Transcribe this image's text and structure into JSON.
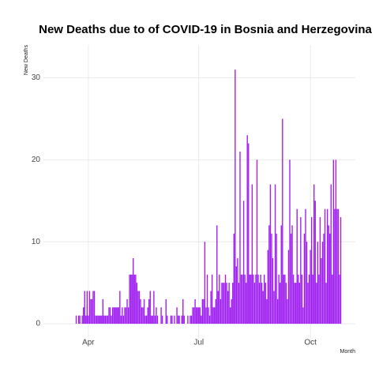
{
  "chart_data": {
    "type": "bar",
    "title": "New Deaths due to of COVID-19 in Bosnia and Herzegovina",
    "x_label": "Month",
    "y_label": "New Deaths",
    "color": "#a020f0",
    "grid": true,
    "xlim": [
      55,
      312
    ],
    "xticks": [
      {
        "value": 92,
        "label": "Apr"
      },
      {
        "value": 183,
        "label": "Jul"
      },
      {
        "value": 275,
        "label": "Oct"
      }
    ],
    "ylim": [
      -2.5,
      34
    ],
    "yticks": [
      0,
      10,
      20,
      30
    ],
    "x": [
      82,
      83,
      84,
      85,
      86,
      87,
      88,
      89,
      90,
      91,
      92,
      93,
      94,
      95,
      96,
      97,
      98,
      99,
      100,
      101,
      102,
      103,
      104,
      105,
      106,
      107,
      108,
      109,
      110,
      111,
      112,
      113,
      114,
      115,
      116,
      117,
      118,
      119,
      120,
      121,
      122,
      123,
      124,
      125,
      126,
      127,
      128,
      129,
      130,
      131,
      132,
      133,
      134,
      135,
      136,
      137,
      138,
      139,
      140,
      141,
      142,
      143,
      144,
      145,
      146,
      147,
      148,
      149,
      150,
      151,
      152,
      153,
      154,
      155,
      156,
      157,
      158,
      159,
      160,
      161,
      162,
      163,
      164,
      165,
      166,
      167,
      168,
      169,
      170,
      171,
      172,
      173,
      174,
      175,
      176,
      177,
      178,
      179,
      180,
      181,
      182,
      183,
      184,
      185,
      186,
      187,
      188,
      189,
      190,
      191,
      192,
      193,
      194,
      195,
      196,
      197,
      198,
      199,
      200,
      201,
      202,
      203,
      204,
      205,
      206,
      207,
      208,
      209,
      210,
      211,
      212,
      213,
      214,
      215,
      216,
      217,
      218,
      219,
      220,
      221,
      222,
      223,
      224,
      225,
      226,
      227,
      228,
      229,
      230,
      231,
      232,
      233,
      234,
      235,
      236,
      237,
      238,
      239,
      240,
      241,
      242,
      243,
      244,
      245,
      246,
      247,
      248,
      249,
      250,
      251,
      252,
      253,
      254,
      255,
      256,
      257,
      258,
      259,
      260,
      261,
      262,
      263,
      264,
      265,
      266,
      267,
      268,
      269,
      270,
      271,
      272,
      273,
      274,
      275,
      276,
      277,
      278,
      279,
      280,
      281,
      282,
      283,
      284,
      285,
      286,
      287,
      288,
      289,
      290,
      291,
      292,
      293,
      294,
      295,
      296,
      297,
      298,
      299,
      300
    ],
    "values": [
      1,
      0,
      1,
      1,
      0,
      1,
      2,
      4,
      1,
      4,
      1,
      4,
      3,
      3,
      4,
      4,
      1,
      1,
      1,
      1,
      1,
      1,
      3,
      1,
      1,
      1,
      1,
      2,
      2,
      1,
      2,
      2,
      2,
      2,
      2,
      2,
      4,
      1,
      2,
      1,
      2,
      2,
      3,
      2,
      6,
      6,
      6,
      8,
      6,
      6,
      5,
      4,
      4,
      3,
      2,
      2,
      3,
      1,
      1,
      2,
      3,
      4,
      1,
      1,
      4,
      1,
      2,
      1,
      0,
      0,
      2,
      1,
      0,
      0,
      3,
      1,
      0,
      0,
      1,
      1,
      0,
      1,
      0,
      2,
      1,
      1,
      0,
      1,
      3,
      1,
      0,
      0,
      1,
      0,
      1,
      1,
      2,
      2,
      3,
      2,
      2,
      2,
      2,
      1,
      3,
      3,
      10,
      2,
      6,
      2,
      1,
      4,
      6,
      2,
      2,
      3,
      12,
      4,
      6,
      3,
      5,
      5,
      5,
      6,
      5,
      4,
      5,
      2,
      3,
      5,
      11,
      31,
      7,
      8,
      5,
      21,
      6,
      6,
      15,
      6,
      5,
      23,
      22,
      6,
      6,
      17,
      6,
      5,
      6,
      20,
      6,
      5,
      6,
      5,
      4,
      6,
      5,
      3,
      9,
      12,
      17,
      11,
      8,
      4,
      17,
      11,
      3,
      6,
      5,
      12,
      25,
      6,
      6,
      5,
      3,
      9,
      20,
      11,
      12,
      6,
      5,
      5,
      14,
      6,
      5,
      13,
      6,
      2,
      11,
      14,
      10,
      5,
      6,
      9,
      13,
      6,
      17,
      15,
      5,
      10,
      6,
      13,
      8,
      10,
      11,
      14,
      5,
      14,
      12,
      11,
      17,
      6,
      20,
      14,
      20,
      14,
      14,
      6,
      13
    ]
  }
}
